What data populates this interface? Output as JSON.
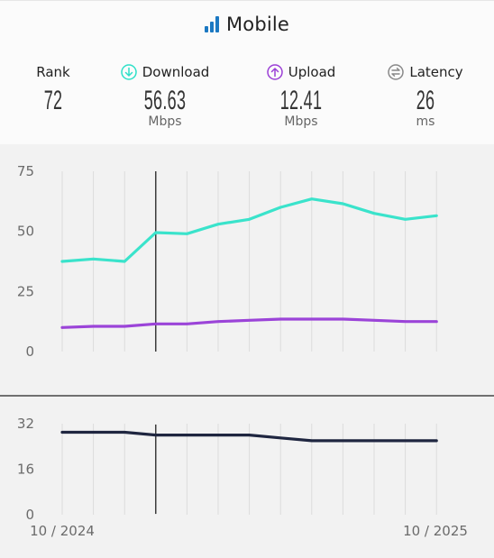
{
  "header": {
    "title": "Mobile",
    "icon": "signal-bars-icon",
    "rank": {
      "label": "Rank",
      "value": "72"
    },
    "download": {
      "label": "Download",
      "value": "56.63",
      "unit": "Mbps",
      "icon": "arrow-down-circle-icon",
      "color": "#2ee0c8"
    },
    "upload": {
      "label": "Upload",
      "value": "12.41",
      "unit": "Mbps",
      "icon": "arrow-up-circle-icon",
      "color": "#9b3fd6"
    },
    "latency": {
      "label": "Latency",
      "value": "26",
      "unit": "ms",
      "icon": "swap-circle-icon",
      "color": "#888888"
    }
  },
  "chart_data": [
    {
      "type": "line",
      "ylim": [
        0,
        75
      ],
      "yticks": [
        "75",
        "50",
        "25",
        "0"
      ],
      "ytick_values": [
        75,
        50,
        25,
        0
      ],
      "grid": true,
      "series": [
        {
          "color": "#3ae3cb",
          "values": [
            37.5,
            38.5,
            37.5,
            49.5,
            49,
            53,
            55,
            60,
            63.5,
            61.5,
            57.5,
            55,
            56.5
          ]
        },
        {
          "color": "#9b44d8",
          "values": [
            10,
            10.5,
            10.5,
            11.5,
            11.5,
            12.5,
            13,
            13.5,
            13.5,
            13.5,
            13,
            12.5,
            12.5
          ]
        }
      ]
    },
    {
      "type": "line",
      "ylim": [
        0,
        32
      ],
      "yticks": [
        "32",
        "16",
        "0"
      ],
      "ytick_values": [
        32,
        16,
        0
      ],
      "grid": true,
      "x_start_label": "10 / 2024",
      "x_end_label": "10 / 2025",
      "series": [
        {
          "color": "#1f2640",
          "values": [
            29,
            29,
            29,
            28,
            28,
            28,
            28,
            27,
            26,
            26,
            26,
            26,
            26
          ]
        }
      ]
    }
  ]
}
